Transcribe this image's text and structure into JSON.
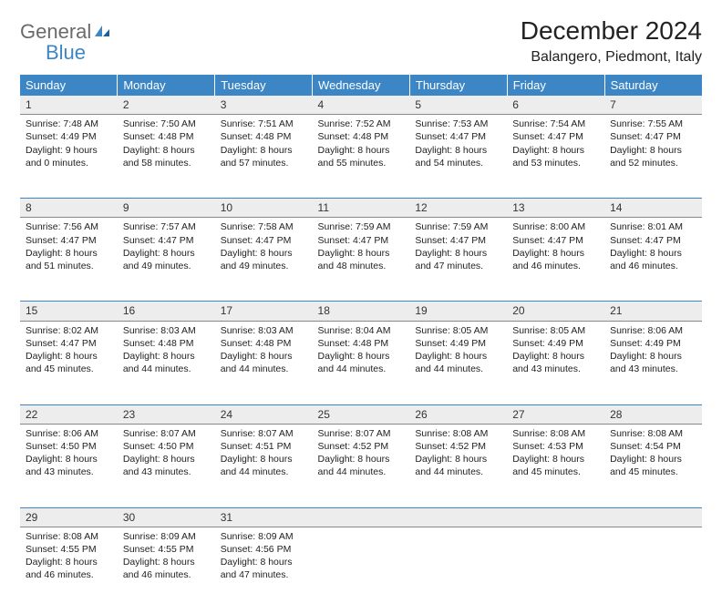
{
  "brand": {
    "line1": "General",
    "line2": "Blue"
  },
  "title": "December 2024",
  "location": "Balangero, Piedmont, Italy",
  "style": {
    "header_bg": "#3d86c6",
    "header_fg": "#ffffff",
    "daynum_bg": "#ededed",
    "daynum_border": "#888888",
    "week_divider": "#3d86c6",
    "page_bg": "#ffffff",
    "text_color": "#222222",
    "logo_gray": "#6a6a6a",
    "logo_blue": "#3d86c6",
    "font_family": "Arial",
    "title_fontsize_pt": 21,
    "location_fontsize_pt": 12,
    "dayheader_fontsize_pt": 10,
    "cell_fontsize_pt": 8
  },
  "columns": [
    "Sunday",
    "Monday",
    "Tuesday",
    "Wednesday",
    "Thursday",
    "Friday",
    "Saturday"
  ],
  "weeks": [
    [
      {
        "n": "1",
        "sr": "7:48 AM",
        "ss": "4:49 PM",
        "dl": "9 hours and 0 minutes."
      },
      {
        "n": "2",
        "sr": "7:50 AM",
        "ss": "4:48 PM",
        "dl": "8 hours and 58 minutes."
      },
      {
        "n": "3",
        "sr": "7:51 AM",
        "ss": "4:48 PM",
        "dl": "8 hours and 57 minutes."
      },
      {
        "n": "4",
        "sr": "7:52 AM",
        "ss": "4:48 PM",
        "dl": "8 hours and 55 minutes."
      },
      {
        "n": "5",
        "sr": "7:53 AM",
        "ss": "4:47 PM",
        "dl": "8 hours and 54 minutes."
      },
      {
        "n": "6",
        "sr": "7:54 AM",
        "ss": "4:47 PM",
        "dl": "8 hours and 53 minutes."
      },
      {
        "n": "7",
        "sr": "7:55 AM",
        "ss": "4:47 PM",
        "dl": "8 hours and 52 minutes."
      }
    ],
    [
      {
        "n": "8",
        "sr": "7:56 AM",
        "ss": "4:47 PM",
        "dl": "8 hours and 51 minutes."
      },
      {
        "n": "9",
        "sr": "7:57 AM",
        "ss": "4:47 PM",
        "dl": "8 hours and 49 minutes."
      },
      {
        "n": "10",
        "sr": "7:58 AM",
        "ss": "4:47 PM",
        "dl": "8 hours and 49 minutes."
      },
      {
        "n": "11",
        "sr": "7:59 AM",
        "ss": "4:47 PM",
        "dl": "8 hours and 48 minutes."
      },
      {
        "n": "12",
        "sr": "7:59 AM",
        "ss": "4:47 PM",
        "dl": "8 hours and 47 minutes."
      },
      {
        "n": "13",
        "sr": "8:00 AM",
        "ss": "4:47 PM",
        "dl": "8 hours and 46 minutes."
      },
      {
        "n": "14",
        "sr": "8:01 AM",
        "ss": "4:47 PM",
        "dl": "8 hours and 46 minutes."
      }
    ],
    [
      {
        "n": "15",
        "sr": "8:02 AM",
        "ss": "4:47 PM",
        "dl": "8 hours and 45 minutes."
      },
      {
        "n": "16",
        "sr": "8:03 AM",
        "ss": "4:48 PM",
        "dl": "8 hours and 44 minutes."
      },
      {
        "n": "17",
        "sr": "8:03 AM",
        "ss": "4:48 PM",
        "dl": "8 hours and 44 minutes."
      },
      {
        "n": "18",
        "sr": "8:04 AM",
        "ss": "4:48 PM",
        "dl": "8 hours and 44 minutes."
      },
      {
        "n": "19",
        "sr": "8:05 AM",
        "ss": "4:49 PM",
        "dl": "8 hours and 44 minutes."
      },
      {
        "n": "20",
        "sr": "8:05 AM",
        "ss": "4:49 PM",
        "dl": "8 hours and 43 minutes."
      },
      {
        "n": "21",
        "sr": "8:06 AM",
        "ss": "4:49 PM",
        "dl": "8 hours and 43 minutes."
      }
    ],
    [
      {
        "n": "22",
        "sr": "8:06 AM",
        "ss": "4:50 PM",
        "dl": "8 hours and 43 minutes."
      },
      {
        "n": "23",
        "sr": "8:07 AM",
        "ss": "4:50 PM",
        "dl": "8 hours and 43 minutes."
      },
      {
        "n": "24",
        "sr": "8:07 AM",
        "ss": "4:51 PM",
        "dl": "8 hours and 44 minutes."
      },
      {
        "n": "25",
        "sr": "8:07 AM",
        "ss": "4:52 PM",
        "dl": "8 hours and 44 minutes."
      },
      {
        "n": "26",
        "sr": "8:08 AM",
        "ss": "4:52 PM",
        "dl": "8 hours and 44 minutes."
      },
      {
        "n": "27",
        "sr": "8:08 AM",
        "ss": "4:53 PM",
        "dl": "8 hours and 45 minutes."
      },
      {
        "n": "28",
        "sr": "8:08 AM",
        "ss": "4:54 PM",
        "dl": "8 hours and 45 minutes."
      }
    ],
    [
      {
        "n": "29",
        "sr": "8:08 AM",
        "ss": "4:55 PM",
        "dl": "8 hours and 46 minutes."
      },
      {
        "n": "30",
        "sr": "8:09 AM",
        "ss": "4:55 PM",
        "dl": "8 hours and 46 minutes."
      },
      {
        "n": "31",
        "sr": "8:09 AM",
        "ss": "4:56 PM",
        "dl": "8 hours and 47 minutes."
      },
      null,
      null,
      null,
      null
    ]
  ],
  "labels": {
    "sunrise": "Sunrise:",
    "sunset": "Sunset:",
    "daylight": "Daylight:"
  }
}
